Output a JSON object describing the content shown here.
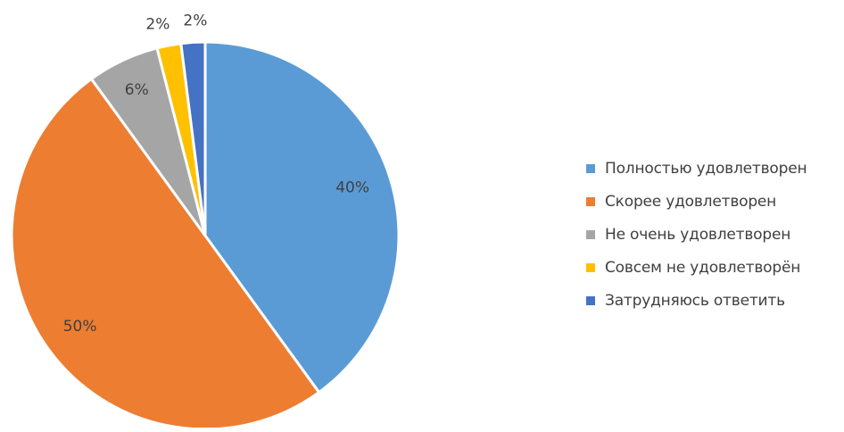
{
  "chart_data": {
    "type": "pie",
    "title": "",
    "categories": [
      "Полностью удовлетворен",
      "Скорее удовлетворен",
      "Не очень удовлетворен",
      "Совсем не удовлетворён",
      "Затрудняюсь ответить"
    ],
    "values": [
      40,
      50,
      6,
      2,
      2
    ],
    "data_labels": [
      "40%",
      "50%",
      "6%",
      "2%",
      "2%"
    ],
    "colors": [
      "#5B9BD5",
      "#ED7D31",
      "#A5A5A5",
      "#FFC000",
      "#4472C4"
    ],
    "start_angle_deg": 0,
    "direction": "clockwise",
    "legend_position": "right"
  }
}
